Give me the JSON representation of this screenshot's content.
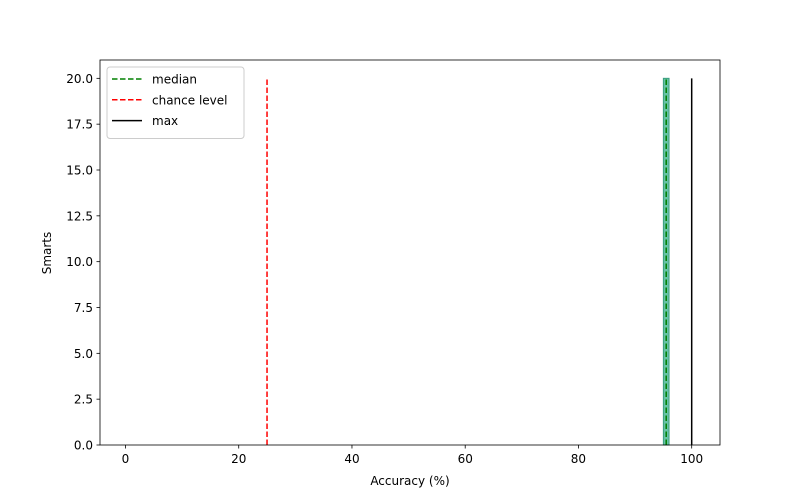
{
  "chart_data": {
    "type": "histogram",
    "title": "",
    "xlabel": "Accuracy (%)",
    "ylabel": "Smarts",
    "xlim": [
      -4.5,
      105
    ],
    "ylim": [
      0,
      21
    ],
    "grid": false,
    "legend_placement": "upper left",
    "xticks": [
      0,
      20,
      40,
      60,
      80,
      100
    ],
    "xtick_labels": [
      "0",
      "20",
      "40",
      "60",
      "80",
      "100"
    ],
    "yticks": [
      0,
      2.5,
      5,
      7.5,
      10,
      12.5,
      15,
      17.5,
      20
    ],
    "ytick_labels": [
      "0.0",
      "2.5",
      "5.0",
      "7.5",
      "10.0",
      "12.5",
      "15.0",
      "17.5",
      "20.0"
    ],
    "bars": [
      {
        "x0": 95.0,
        "x1": 96.0,
        "count": 20,
        "color": "#66c2a5",
        "edge": "#3a9e7f"
      }
    ],
    "vlines": [
      {
        "name": "median",
        "x": 95.5,
        "ymin": 0,
        "ymax": 20,
        "color": "#008000",
        "dash": "dashed"
      },
      {
        "name": "chance level",
        "x": 25,
        "ymin": 0,
        "ymax": 20,
        "color": "#ff0000",
        "dash": "dashed"
      },
      {
        "name": "max",
        "x": 100,
        "ymin": 0,
        "ymax": 20,
        "color": "#000000",
        "dash": "solid"
      }
    ]
  }
}
